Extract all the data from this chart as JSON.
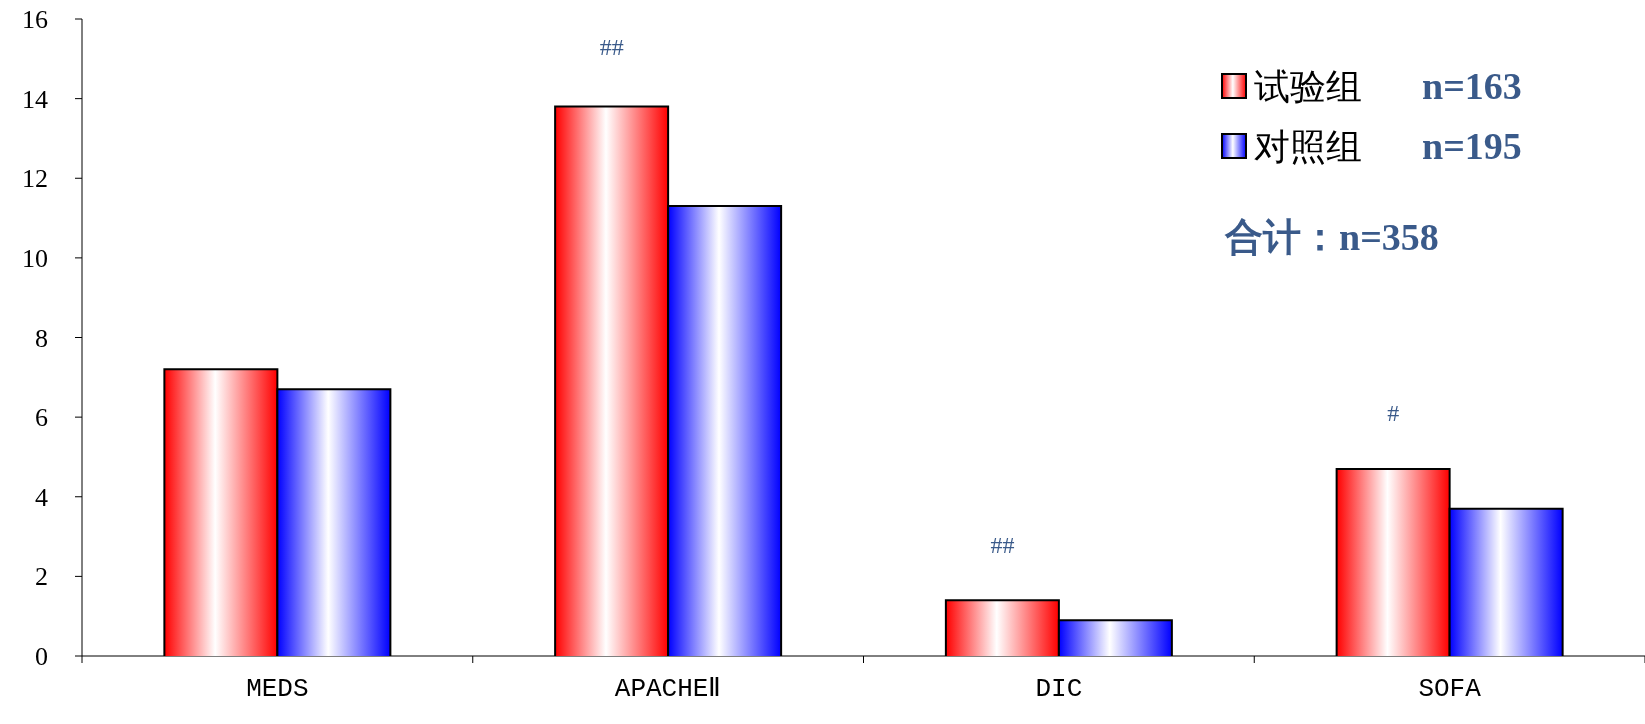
{
  "chart_data": {
    "type": "bar",
    "categories": [
      "MEDS",
      "APACHEⅡ",
      "DIC",
      "SOFA"
    ],
    "series": [
      {
        "name": "试验组",
        "color": "#ff0000",
        "values": [
          7.2,
          13.8,
          1.4,
          4.7
        ]
      },
      {
        "name": "对照组",
        "color": "#0000ff",
        "values": [
          6.7,
          11.3,
          0.9,
          3.7
        ]
      }
    ],
    "ylim": [
      0,
      16
    ],
    "yticks": [
      0,
      2,
      4,
      6,
      8,
      10,
      12,
      14,
      16
    ],
    "legend": "top right",
    "annotations": [
      "n=163",
      "n=195",
      "合计：n=358",
      "##",
      "##",
      "#"
    ]
  }
}
